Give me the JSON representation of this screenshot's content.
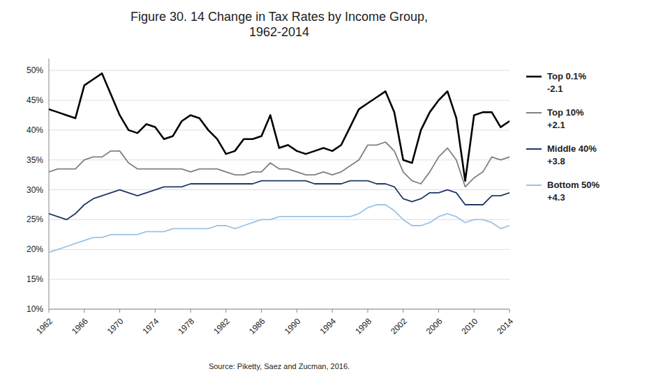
{
  "chart_data": {
    "type": "line",
    "title": "Figure 30. 14 Change in Tax Rates by Income Group,\n1962-2014",
    "annotations": [
      "-2.1",
      "+2.1",
      "+3.8",
      "+4.3",
      "Source: Piketty, Saez and Zucman, 2016."
    ],
    "x": [
      1962,
      1963,
      1964,
      1965,
      1966,
      1967,
      1968,
      1969,
      1970,
      1971,
      1972,
      1973,
      1974,
      1975,
      1976,
      1977,
      1978,
      1979,
      1980,
      1981,
      1982,
      1983,
      1984,
      1985,
      1986,
      1987,
      1988,
      1989,
      1990,
      1991,
      1992,
      1993,
      1994,
      1995,
      1996,
      1997,
      1998,
      1999,
      2000,
      2001,
      2002,
      2003,
      2004,
      2005,
      2006,
      2007,
      2008,
      2009,
      2010,
      2011,
      2012,
      2013,
      2014
    ],
    "series": [
      {
        "name": "Top 0.1%",
        "color": "#000000",
        "values": [
          43.5,
          43.0,
          42.5,
          42.0,
          47.5,
          48.5,
          49.5,
          46.0,
          42.5,
          40.0,
          39.5,
          41.0,
          40.5,
          38.5,
          39.0,
          41.5,
          42.5,
          42.0,
          40.0,
          38.5,
          36.0,
          36.5,
          38.5,
          38.5,
          39.0,
          42.5,
          37.0,
          37.5,
          36.5,
          36.0,
          36.5,
          37.0,
          36.5,
          37.5,
          40.5,
          43.5,
          44.5,
          45.5,
          46.5,
          43.0,
          35.0,
          34.5,
          40.0,
          43.0,
          45.0,
          46.5,
          42.0,
          31.5,
          42.5,
          43.0,
          43.0,
          40.5,
          41.5
        ]
      },
      {
        "name": "Top 10%",
        "color": "#808080",
        "values": [
          33.0,
          33.5,
          33.5,
          33.5,
          35.0,
          35.5,
          35.5,
          36.5,
          36.5,
          34.5,
          33.5,
          33.5,
          33.5,
          33.5,
          33.5,
          33.5,
          33.0,
          33.5,
          33.5,
          33.5,
          33.0,
          32.5,
          32.5,
          33.0,
          33.0,
          34.5,
          33.5,
          33.5,
          33.0,
          32.5,
          32.5,
          33.0,
          32.5,
          33.0,
          34.0,
          35.0,
          37.5,
          37.5,
          38.0,
          36.5,
          33.0,
          31.5,
          31.0,
          33.0,
          35.5,
          37.0,
          35.0,
          30.5,
          32.0,
          33.0,
          35.5,
          35.0,
          35.5
        ]
      },
      {
        "name": "Middle 40%",
        "color": "#1f3864",
        "values": [
          26.0,
          25.5,
          25.0,
          26.0,
          27.5,
          28.5,
          29.0,
          29.5,
          30.0,
          29.5,
          29.0,
          29.5,
          30.0,
          30.5,
          30.5,
          30.5,
          31.0,
          31.0,
          31.0,
          31.0,
          31.0,
          31.0,
          31.0,
          31.0,
          31.5,
          31.5,
          31.5,
          31.5,
          31.5,
          31.5,
          31.0,
          31.0,
          31.0,
          31.0,
          31.5,
          31.5,
          31.5,
          31.0,
          31.0,
          30.5,
          28.5,
          28.0,
          28.5,
          29.5,
          29.5,
          30.0,
          29.5,
          27.5,
          27.5,
          27.5,
          29.0,
          29.0,
          29.5
        ]
      },
      {
        "name": "Bottom 50%",
        "color": "#9dc3e6",
        "values": [
          19.5,
          20.0,
          20.5,
          21.0,
          21.5,
          22.0,
          22.0,
          22.5,
          22.5,
          22.5,
          22.5,
          23.0,
          23.0,
          23.0,
          23.5,
          23.5,
          23.5,
          23.5,
          23.5,
          24.0,
          24.0,
          23.5,
          24.0,
          24.5,
          25.0,
          25.0,
          25.5,
          25.5,
          25.5,
          25.5,
          25.5,
          25.5,
          25.5,
          25.5,
          25.5,
          26.0,
          27.0,
          27.5,
          27.5,
          26.5,
          25.0,
          24.0,
          24.0,
          24.5,
          25.5,
          26.0,
          25.5,
          24.5,
          25.0,
          25.0,
          24.5,
          23.5,
          24.0
        ]
      }
    ],
    "xlim": [
      1962,
      2014
    ],
    "xticks": [
      1962,
      1966,
      1970,
      1974,
      1978,
      1982,
      1986,
      1990,
      1994,
      1998,
      2002,
      2006,
      2010,
      2014
    ],
    "ylim": [
      10,
      52
    ],
    "yticks": [
      {
        "value": 10,
        "label": "10%"
      },
      {
        "value": 15,
        "label": "15%"
      },
      {
        "value": 20,
        "label": "20%"
      },
      {
        "value": 25,
        "label": "25%"
      },
      {
        "value": 30,
        "label": "30%"
      },
      {
        "value": 35,
        "label": "35%"
      },
      {
        "value": 40,
        "label": "40%"
      },
      {
        "value": 45,
        "label": "45%"
      },
      {
        "value": 50,
        "label": "50%"
      }
    ],
    "grid": true,
    "legend": "right"
  }
}
